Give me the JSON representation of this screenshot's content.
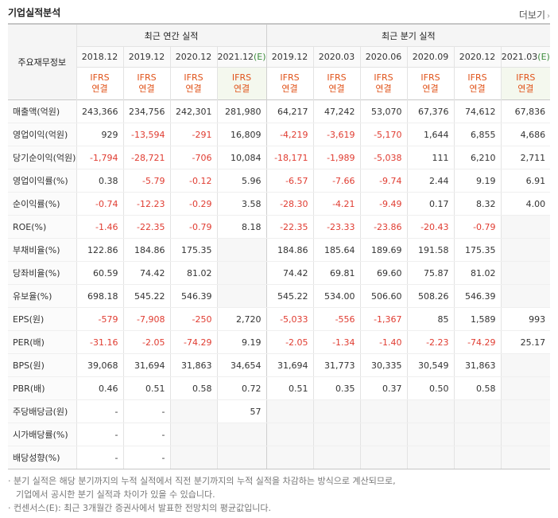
{
  "header": {
    "title": "기업실적분석",
    "more_label": "더보기"
  },
  "table": {
    "rowhead_label": "주요재무정보",
    "annual_label": "최근 연간 실적",
    "quarter_label": "최근 분기 실적",
    "annual_periods": [
      "2018.12",
      "2019.12",
      "2020.12",
      "2021.12"
    ],
    "annual_est_suffix": "(E)",
    "quarter_periods": [
      "2019.12",
      "2020.03",
      "2020.06",
      "2020.09",
      "2020.12",
      "2021.03"
    ],
    "quarter_est_suffix": "(E)",
    "ifrs_line1": "IFRS",
    "ifrs_line2": "연결",
    "rows": [
      {
        "label": "매출액(억원)",
        "values": [
          "243,366",
          "234,756",
          "242,301",
          "281,980",
          "64,217",
          "47,242",
          "53,070",
          "67,376",
          "74,612",
          "67,836"
        ]
      },
      {
        "label": "영업이익(억원)",
        "values": [
          "929",
          "-13,594",
          "-291",
          "16,809",
          "-4,219",
          "-3,619",
          "-5,170",
          "1,644",
          "6,855",
          "4,686"
        ]
      },
      {
        "label": "당기순이익(억원)",
        "values": [
          "-1,794",
          "-28,721",
          "-706",
          "10,084",
          "-18,171",
          "-1,989",
          "-5,038",
          "111",
          "6,210",
          "2,711"
        ]
      },
      {
        "label": "영업이익률(%)",
        "values": [
          "0.38",
          "-5.79",
          "-0.12",
          "5.96",
          "-6.57",
          "-7.66",
          "-9.74",
          "2.44",
          "9.19",
          "6.91"
        ]
      },
      {
        "label": "순이익률(%)",
        "values": [
          "-0.74",
          "-12.23",
          "-0.29",
          "3.58",
          "-28.30",
          "-4.21",
          "-9.49",
          "0.17",
          "8.32",
          "4.00"
        ]
      },
      {
        "label": "ROE(%)",
        "values": [
          "-1.46",
          "-22.35",
          "-0.79",
          "8.18",
          "-22.35",
          "-23.33",
          "-23.86",
          "-20.43",
          "-0.79",
          ""
        ]
      },
      {
        "label": "부채비율(%)",
        "values": [
          "122.86",
          "184.86",
          "175.35",
          "",
          "184.86",
          "185.64",
          "189.69",
          "191.58",
          "175.35",
          ""
        ]
      },
      {
        "label": "당좌비율(%)",
        "values": [
          "60.59",
          "74.42",
          "81.02",
          "",
          "74.42",
          "69.81",
          "69.60",
          "75.87",
          "81.02",
          ""
        ]
      },
      {
        "label": "유보율(%)",
        "values": [
          "698.18",
          "545.22",
          "546.39",
          "",
          "545.22",
          "534.00",
          "506.60",
          "508.26",
          "546.39",
          ""
        ]
      },
      {
        "label": "EPS(원)",
        "values": [
          "-579",
          "-7,908",
          "-250",
          "2,720",
          "-5,033",
          "-556",
          "-1,367",
          "85",
          "1,589",
          "993"
        ]
      },
      {
        "label": "PER(배)",
        "values": [
          "-31.16",
          "-2.05",
          "-74.29",
          "9.19",
          "-2.05",
          "-1.34",
          "-1.40",
          "-2.23",
          "-74.29",
          "25.17"
        ]
      },
      {
        "label": "BPS(원)",
        "values": [
          "39,068",
          "31,694",
          "31,863",
          "34,654",
          "31,694",
          "31,773",
          "30,335",
          "30,549",
          "31,863",
          ""
        ]
      },
      {
        "label": "PBR(배)",
        "values": [
          "0.46",
          "0.51",
          "0.58",
          "0.72",
          "0.51",
          "0.35",
          "0.37",
          "0.50",
          "0.58",
          ""
        ]
      },
      {
        "label": "주당배당금(원)",
        "values": [
          "-",
          "-",
          "",
          "57",
          "",
          "",
          "",
          "",
          "",
          ""
        ]
      },
      {
        "label": "시가배당률(%)",
        "values": [
          "-",
          "-",
          "",
          "",
          "",
          "",
          "",
          "",
          "",
          ""
        ]
      },
      {
        "label": "배당성향(%)",
        "values": [
          "-",
          "-",
          "",
          "",
          "",
          "",
          "",
          "",
          "",
          ""
        ]
      }
    ]
  },
  "notes": {
    "line1": "· 분기 실적은 해당 분기까지의 누적 실적에서 직전 분기까지의 누적 실적을 차감하는 방식으로 계산되므로,",
    "line2": "기업에서 공시한 분기 실적과 차이가 있을 수 있습니다.",
    "line3": "· 컨센서스(E): 최근 3개월간 증권사에서 발표한 전망치의 평균값입니다."
  },
  "colors": {
    "negative": "#e03c31",
    "ifrs": "#e0531a",
    "estimate": "#3c8c3c"
  }
}
